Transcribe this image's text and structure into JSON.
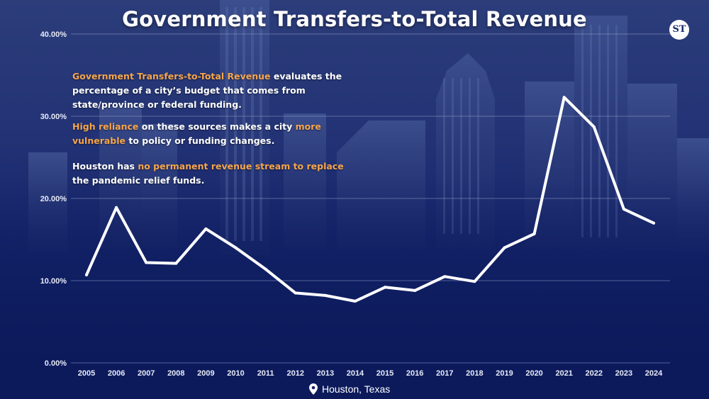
{
  "title": "Government Transfers-to-Total Revenue",
  "logo_text": "ST",
  "annotation": {
    "p1_highlight": "Government Transfers-to-Total Revenue",
    "p1_text": " evaluates the percentage of a city’s budget that comes from state/province or federal funding.",
    "p2_highlight1": "High reliance",
    "p2_text1": " on these sources makes a city ",
    "p2_highlight2": "more vulnerable",
    "p2_text2": " to policy or funding changes.",
    "p3_text1": "Houston has ",
    "p3_highlight": "no permanent revenue stream to replace",
    "p3_text2": " the pandemic relief funds."
  },
  "location": {
    "text": "Houston, Texas",
    "icon": "map-pin-icon"
  },
  "colors": {
    "accent": "#f6a64c",
    "line": "#ffffff",
    "text": "#ffffff",
    "background": "#142368"
  },
  "chart_data": {
    "type": "line",
    "title": "Government Transfers-to-Total Revenue",
    "xlabel": "",
    "ylabel": "",
    "x": [
      "2005",
      "2006",
      "2007",
      "2008",
      "2009",
      "2010",
      "2011",
      "2012",
      "2013",
      "2014",
      "2015",
      "2016",
      "2017",
      "2018",
      "2019",
      "2020",
      "2021",
      "2022",
      "2023",
      "2024"
    ],
    "series": [
      {
        "values": [
          10.7,
          18.9,
          12.2,
          12.1,
          16.3,
          14.0,
          11.4,
          8.5,
          8.2,
          7.5,
          9.2,
          8.8,
          10.5,
          9.9,
          14.0,
          15.7,
          32.3,
          28.7,
          18.7,
          17.0
        ]
      }
    ],
    "ylim": [
      0,
      40
    ],
    "yticks": [
      "0.00%",
      "10.00%",
      "20.00%",
      "30.00%",
      "40.00%"
    ],
    "grid": true,
    "legend": "none"
  }
}
